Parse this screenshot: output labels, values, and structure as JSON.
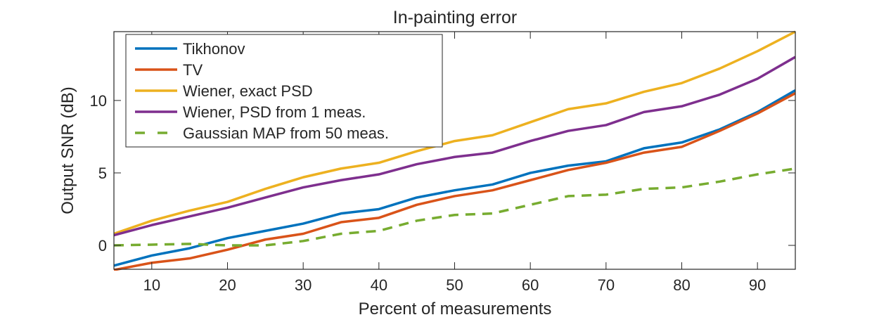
{
  "chart_data": {
    "type": "line",
    "title": "In-painting error",
    "xlabel": "Percent of measurements",
    "ylabel": "Output SNR (dB)",
    "xlim": [
      5,
      95
    ],
    "ylim": [
      -1.65,
      14.75
    ],
    "xticks": [
      10,
      20,
      30,
      40,
      50,
      60,
      70,
      80,
      90
    ],
    "yticks": [
      0,
      5,
      10
    ],
    "grid": false,
    "legend_position": "top-left",
    "x": [
      5,
      10,
      15,
      20,
      25,
      30,
      35,
      40,
      45,
      50,
      55,
      60,
      65,
      70,
      75,
      80,
      85,
      90,
      95
    ],
    "series": [
      {
        "name": "Tikhonov",
        "color": "#0072BD",
        "dash": false,
        "values": [
          -1.4,
          -0.7,
          -0.2,
          0.5,
          1.0,
          1.5,
          2.2,
          2.5,
          3.3,
          3.8,
          4.2,
          5.0,
          5.5,
          5.8,
          6.7,
          7.1,
          8.0,
          9.2,
          10.7
        ]
      },
      {
        "name": "TV",
        "color": "#D95319",
        "dash": false,
        "values": [
          -1.7,
          -1.2,
          -0.9,
          -0.3,
          0.4,
          0.8,
          1.6,
          1.9,
          2.8,
          3.4,
          3.8,
          4.5,
          5.2,
          5.7,
          6.4,
          6.8,
          7.9,
          9.1,
          10.5
        ]
      },
      {
        "name": "Wiener, exact PSD",
        "color": "#EDB120",
        "dash": false,
        "values": [
          0.8,
          1.7,
          2.4,
          3.0,
          3.9,
          4.7,
          5.3,
          5.7,
          6.5,
          7.2,
          7.6,
          8.5,
          9.4,
          9.8,
          10.6,
          11.2,
          12.2,
          13.4,
          14.75
        ]
      },
      {
        "name": "Wiener, PSD from 1 meas.",
        "color": "#7E2F8E",
        "dash": false,
        "values": [
          0.7,
          1.4,
          2.0,
          2.6,
          3.3,
          4.0,
          4.5,
          4.9,
          5.6,
          6.1,
          6.4,
          7.2,
          7.9,
          8.3,
          9.2,
          9.6,
          10.4,
          11.5,
          13.0
        ]
      },
      {
        "name": "Gaussian MAP from 50 meas.",
        "color": "#77AC30",
        "dash": true,
        "values": [
          0.0,
          0.05,
          0.1,
          0.0,
          0.0,
          0.3,
          0.8,
          1.0,
          1.7,
          2.1,
          2.2,
          2.8,
          3.4,
          3.5,
          3.9,
          4.0,
          4.4,
          4.9,
          5.3
        ]
      }
    ]
  }
}
